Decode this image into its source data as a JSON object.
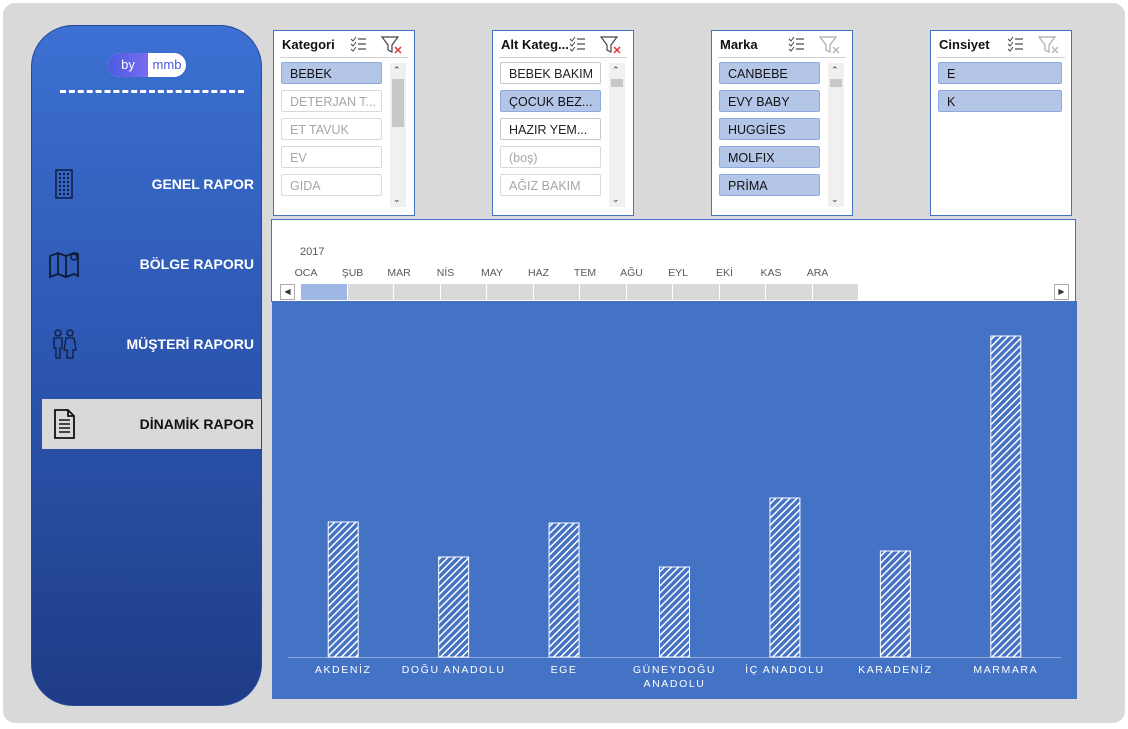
{
  "sidebar": {
    "logo": {
      "left": "by",
      "right": "mmb"
    },
    "nav": [
      {
        "label": "GENEL RAPOR",
        "icon": "building",
        "active": false
      },
      {
        "label": "BÖLGE RAPORU",
        "icon": "map",
        "active": false
      },
      {
        "label": "MÜŞTERİ RAPORU",
        "icon": "people",
        "active": false
      },
      {
        "label": "DİNAMİK RAPOR",
        "icon": "doc",
        "active": true
      }
    ]
  },
  "slicers": [
    {
      "title": "Kategori",
      "scroll": true,
      "filtered": true,
      "items": [
        {
          "label": "BEBEK",
          "state": "selected"
        },
        {
          "label": "DETERJAN T...",
          "state": "empty"
        },
        {
          "label": "ET TAVUK",
          "state": "empty"
        },
        {
          "label": "EV",
          "state": "empty"
        },
        {
          "label": "GIDA",
          "state": "empty"
        }
      ]
    },
    {
      "title": "Alt Kateg...",
      "scroll": true,
      "filtered": true,
      "items": [
        {
          "label": "BEBEK BAKIM",
          "state": "available"
        },
        {
          "label": "ÇOCUK BEZ...",
          "state": "selected"
        },
        {
          "label": "HAZIR YEM...",
          "state": "available"
        },
        {
          "label": "(boş)",
          "state": "empty"
        },
        {
          "label": "AĞIZ BAKIM",
          "state": "empty"
        }
      ]
    },
    {
      "title": "Marka",
      "scroll": true,
      "filtered": false,
      "items": [
        {
          "label": "CANBEBE",
          "state": "selected"
        },
        {
          "label": "EVY BABY",
          "state": "selected"
        },
        {
          "label": "HUGGİES",
          "state": "selected"
        },
        {
          "label": "MOLFIX",
          "state": "selected"
        },
        {
          "label": "PRİMA",
          "state": "selected"
        }
      ]
    },
    {
      "title": "Cinsiyet",
      "scroll": false,
      "filtered": false,
      "items": [
        {
          "label": "E",
          "state": "selected"
        },
        {
          "label": "K",
          "state": "selected"
        }
      ]
    }
  ],
  "timeline": {
    "year": "2017",
    "selected": 0,
    "months": [
      "OCA",
      "ŞUB",
      "MAR",
      "NİS",
      "MAY",
      "HAZ",
      "TEM",
      "AĞU",
      "EYL",
      "EKİ",
      "KAS",
      "ARA"
    ]
  },
  "chart_data": {
    "type": "bar",
    "categories": [
      "AKDENİZ",
      "DOĞU ANADOLU",
      "EGE",
      "GÜNEYDOĞU ANADOLU",
      "İÇ ANADOLU",
      "KARADENİZ",
      "MARMARA"
    ],
    "values": [
      135,
      100,
      134,
      90,
      159,
      106,
      321
    ],
    "color": "#ffffff",
    "background": "#4472c4"
  }
}
